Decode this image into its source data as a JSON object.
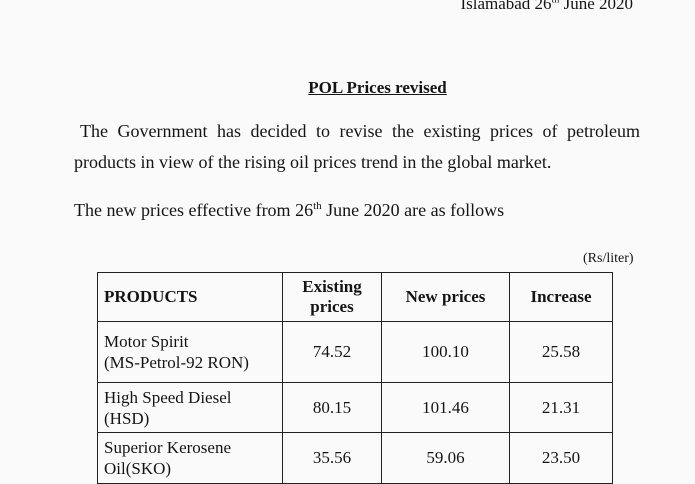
{
  "header": {
    "dateline_prefix": "Islamabad 26",
    "dateline_sup": "th",
    "dateline_suffix": " June 2020"
  },
  "title": "POL Prices revised",
  "paragraph": "The Government has decided to revise the existing prices of petroleum products in view of the rising oil prices trend in the global market.",
  "intro": {
    "prefix": "The new prices effective from 26",
    "sup": "th",
    "suffix": " June 2020 are as follows"
  },
  "unit": "(Rs/liter)",
  "table": {
    "headers": [
      "PRODUCTS",
      "Existing prices",
      "New prices",
      "Increase"
    ],
    "rows": [
      {
        "product_line1": "Motor Spirit",
        "product_line2": "(MS-Petrol-92 RON)",
        "existing": "74.52",
        "new": "100.10",
        "increase": "25.58"
      },
      {
        "product_line1": "High Speed Diesel",
        "product_line2": "(HSD)",
        "existing": "80.15",
        "new": "101.46",
        "increase": "21.31"
      },
      {
        "product_line1": "Superior Kerosene",
        "product_line2": "Oil(SKO)",
        "existing": "35.56",
        "new": "59.06",
        "increase": "23.50"
      }
    ]
  }
}
